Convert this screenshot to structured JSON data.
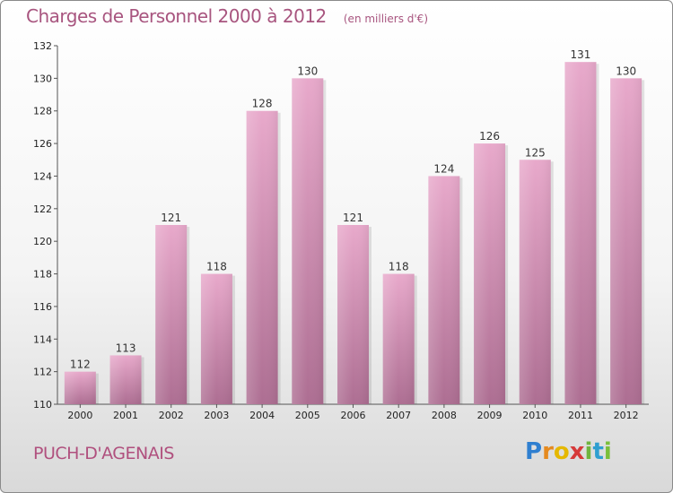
{
  "chart_data": {
    "type": "bar",
    "title": "Charges de Personnel 2000 à 2012",
    "subtitle": "(en milliers d'€)",
    "categories": [
      "2000",
      "2001",
      "2002",
      "2003",
      "2004",
      "2005",
      "2006",
      "2007",
      "2008",
      "2009",
      "2010",
      "2011",
      "2012"
    ],
    "values": [
      112,
      113,
      121,
      118,
      128,
      130,
      121,
      118,
      124,
      126,
      125,
      131,
      130
    ],
    "ylim": [
      110,
      132
    ],
    "yticks": [
      110,
      112,
      114,
      116,
      118,
      120,
      122,
      124,
      126,
      128,
      130,
      132
    ],
    "grid": false,
    "legend": "none",
    "bar_color": "#d48ab0"
  },
  "commune": "PUCH-D'AGENAIS",
  "logo": {
    "letters": [
      "P",
      "r",
      "o",
      "x",
      "i",
      "t",
      "i"
    ],
    "colors": [
      "#2f7fd0",
      "#e58a1f",
      "#e5b800",
      "#d63a3a",
      "#6fb43f",
      "#2f9fd0",
      "#7bbf3a"
    ]
  }
}
